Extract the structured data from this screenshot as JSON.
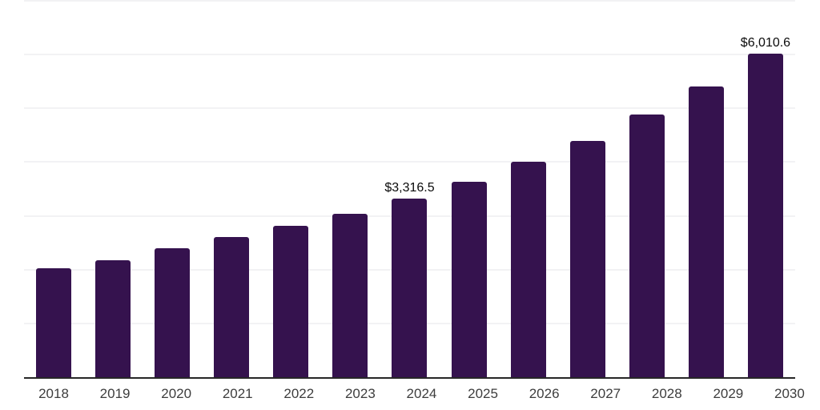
{
  "chart_data": {
    "type": "bar",
    "title": "",
    "xlabel": "",
    "ylabel": "",
    "categories": [
      "2018",
      "2019",
      "2020",
      "2021",
      "2022",
      "2023",
      "2024",
      "2025",
      "2026",
      "2027",
      "2028",
      "2029",
      "2030"
    ],
    "values": [
      2030,
      2180,
      2400,
      2610,
      2820,
      3040,
      3316.5,
      3640,
      4000,
      4400,
      4880,
      5410,
      6010.6
    ],
    "data_labels": [
      "",
      "",
      "",
      "",
      "",
      "",
      "$3,316.5",
      "",
      "",
      "",
      "",
      "",
      "$6,010.6"
    ],
    "ylim": [
      0,
      7000
    ],
    "y_gridline_step": 1000,
    "y_axis_tick_labels_visible": false,
    "grid": "horizontal",
    "legend": "none",
    "colors": {
      "bar": "#35124e",
      "gridline": "#f2f2f4",
      "axis_line": "#272727",
      "tick_label": "#3d3d3d",
      "data_label": "#0a0a0a",
      "background": "#ffffff"
    }
  }
}
